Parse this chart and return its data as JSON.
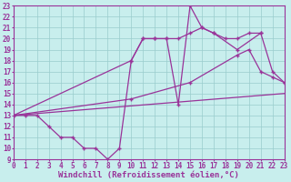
{
  "background_color": "#c8eeed",
  "line_color": "#993399",
  "grid_color": "#99cccc",
  "xlabel": "Windchill (Refroidissement éolien,°C)",
  "xlabel_fontsize": 6.5,
  "tick_fontsize": 5.5,
  "xmin": 0,
  "xmax": 23,
  "ymin": 9,
  "ymax": 23,
  "series": [
    {
      "x": [
        0,
        1,
        2,
        3,
        4,
        5,
        6,
        7,
        8,
        9,
        10,
        11,
        12,
        13,
        14,
        15,
        16,
        17,
        19,
        21
      ],
      "y": [
        13,
        13,
        13,
        12,
        11,
        11,
        10,
        10,
        9,
        10,
        18,
        20,
        20,
        20,
        14,
        23,
        21,
        20.5,
        19,
        20.5
      ]
    },
    {
      "x": [
        0,
        10,
        11,
        12,
        13,
        14,
        15,
        16,
        17,
        18,
        19,
        20,
        21,
        22,
        23
      ],
      "y": [
        13,
        18,
        20,
        20,
        20,
        20,
        20.5,
        21,
        20.5,
        20,
        20,
        20.5,
        20.5,
        17,
        16
      ]
    },
    {
      "x": [
        0,
        10,
        15,
        19,
        20,
        21,
        22,
        23
      ],
      "y": [
        13,
        14.5,
        16,
        18.5,
        19,
        17,
        16.5,
        16
      ]
    },
    {
      "x": [
        0,
        23
      ],
      "y": [
        13,
        15
      ]
    }
  ]
}
